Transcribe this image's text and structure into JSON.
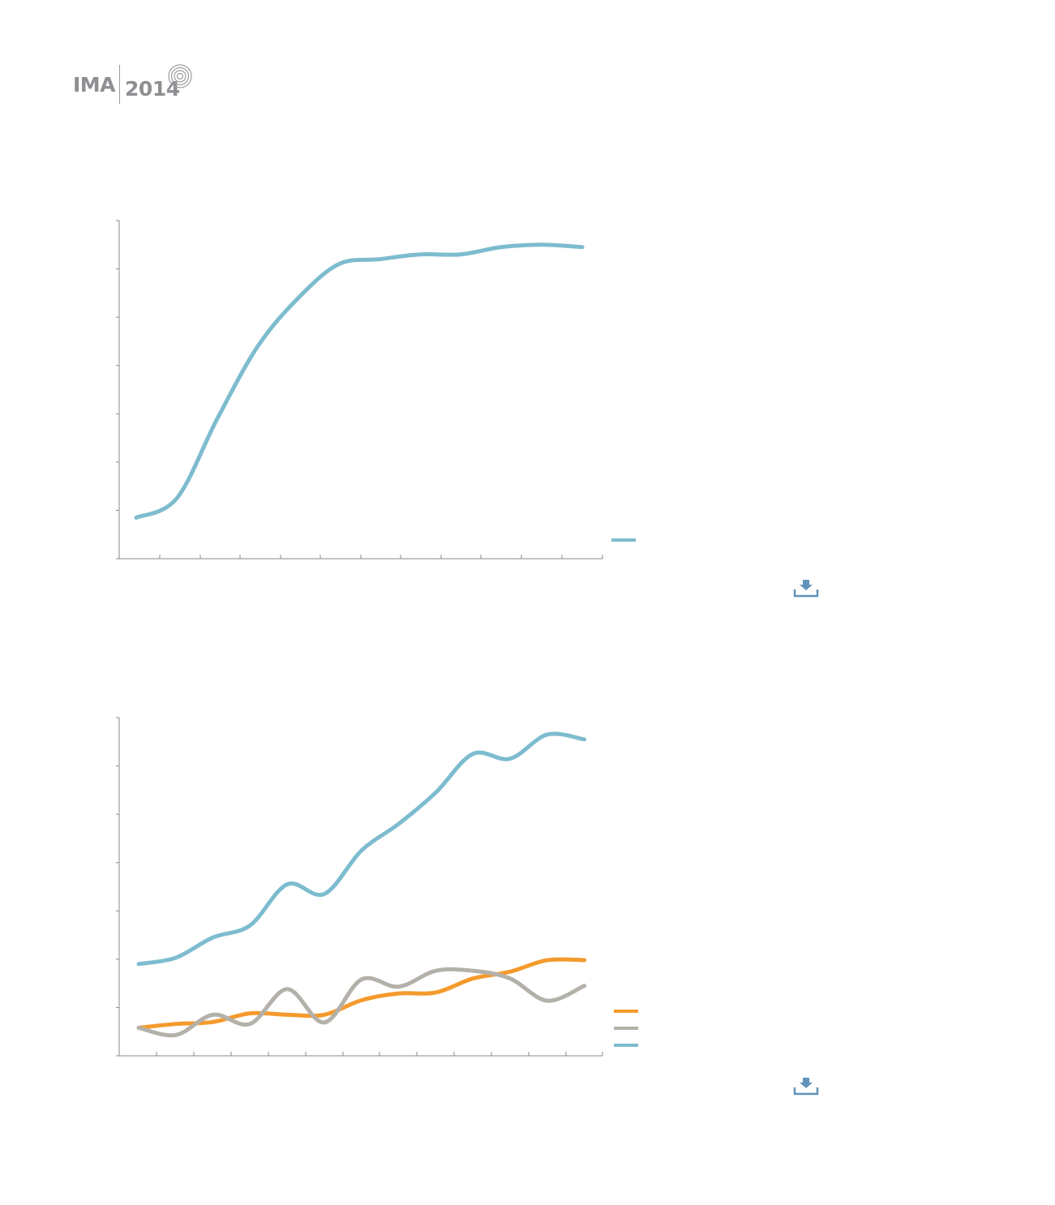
{
  "logo": {
    "left": "IMA",
    "right": "2014"
  },
  "colors": {
    "axis": "#8a8a8a",
    "blue": "#7dbccf",
    "orange": "#f49a2c",
    "gray": "#b3b1a9",
    "download": "#5f93b8"
  },
  "icons": {
    "download": "download-icon",
    "rings": "concentric-rings-icon"
  },
  "chart_data": [
    {
      "type": "line",
      "title": "",
      "xlabel": "",
      "ylabel": "",
      "ylim": [
        0,
        7
      ],
      "grid": false,
      "legend": "right",
      "x": [
        1,
        2,
        3,
        4,
        5,
        6,
        7,
        8,
        9,
        10,
        11,
        12
      ],
      "series": [
        {
          "color": "#7dbccf",
          "values": [
            0.85,
            1.25,
            2.9,
            4.4,
            5.4,
            6.1,
            6.2,
            6.3,
            6.3,
            6.45,
            6.5,
            6.45
          ]
        }
      ]
    },
    {
      "type": "line",
      "title": "",
      "xlabel": "",
      "ylabel": "",
      "ylim": [
        0,
        7
      ],
      "grid": false,
      "legend": "right",
      "x": [
        1,
        2,
        3,
        4,
        5,
        6,
        7,
        8,
        9,
        10,
        11,
        12,
        13
      ],
      "series": [
        {
          "color": "#f49a2c",
          "values": [
            0.58,
            0.66,
            0.7,
            0.88,
            0.85,
            0.85,
            1.15,
            1.29,
            1.31,
            1.6,
            1.74,
            1.98,
            1.98
          ]
        },
        {
          "color": "#b3b1a9",
          "values": [
            0.58,
            0.43,
            0.85,
            0.66,
            1.38,
            0.69,
            1.58,
            1.43,
            1.76,
            1.76,
            1.6,
            1.14,
            1.45
          ]
        },
        {
          "color": "#7dbccf",
          "values": [
            1.9,
            2.03,
            2.45,
            2.7,
            3.55,
            3.35,
            4.25,
            4.8,
            5.45,
            6.25,
            6.15,
            6.65,
            6.55
          ]
        }
      ]
    }
  ]
}
